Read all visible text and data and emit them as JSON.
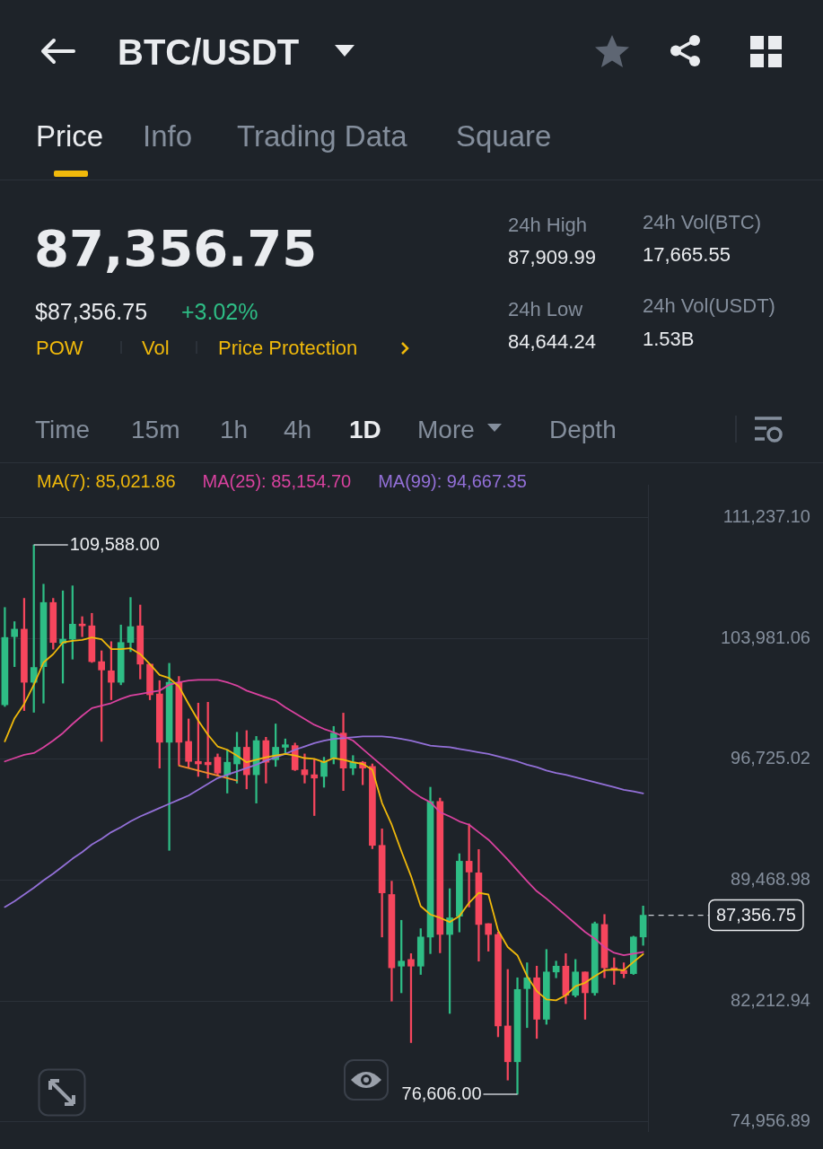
{
  "chart_data": {
    "type": "candlestick",
    "title": "BTC/USDT",
    "subtitle": "87,356.75",
    "categories": [
      null,
      null,
      null,
      null,
      null,
      null,
      null,
      null,
      null,
      null,
      null,
      null,
      null,
      null,
      null,
      null,
      null,
      null,
      null,
      null,
      null,
      null,
      null,
      null,
      null,
      null,
      null,
      null,
      null,
      null,
      null,
      null,
      null,
      null,
      null,
      null,
      null,
      null,
      null,
      null,
      null,
      null,
      null,
      null,
      null,
      null,
      null,
      null,
      null,
      null,
      null,
      null,
      null,
      null,
      null,
      null,
      null,
      null,
      null,
      null,
      null,
      null,
      null,
      null,
      null,
      null,
      null
    ],
    "ohlc": [
      [
        99990,
        105830,
        99890,
        104030
      ],
      [
        104080,
        104980,
        102280,
        104530
      ],
      [
        104530,
        106380,
        99640,
        101340
      ],
      [
        101340,
        109588,
        99540,
        102230
      ],
      [
        102280,
        107230,
        100090,
        106130
      ],
      [
        106130,
        106380,
        103330,
        103730
      ],
      [
        103680,
        106830,
        101290,
        103930
      ],
      [
        103930,
        107130,
        102730,
        104830
      ],
      [
        104830,
        105280,
        104080,
        104730
      ],
      [
        104730,
        105480,
        102530,
        102580
      ],
      [
        102580,
        103230,
        97790,
        102080
      ],
      [
        102030,
        103780,
        100290,
        101340
      ],
      [
        101340,
        104780,
        101190,
        103730
      ],
      [
        103730,
        106430,
        103180,
        104680
      ],
      [
        104730,
        105980,
        101540,
        102430
      ],
      [
        102430,
        102430,
        100290,
        100590
      ],
      [
        100640,
        101440,
        96190,
        97740
      ],
      [
        97740,
        102480,
        91250,
        101340
      ],
      [
        101340,
        101690,
        96390,
        97740
      ],
      [
        97790,
        99140,
        96190,
        96590
      ],
      [
        96590,
        100090,
        95690,
        96440
      ],
      [
        96540,
        100140,
        95590,
        96390
      ],
      [
        96840,
        97040,
        95740,
        95890
      ],
      [
        95790,
        97290,
        94690,
        96540
      ],
      [
        96440,
        98340,
        95290,
        97440
      ],
      [
        97440,
        98440,
        94940,
        95790
      ],
      [
        95790,
        98090,
        94090,
        97840
      ],
      [
        97840,
        98040,
        95290,
        96540
      ],
      [
        96690,
        98840,
        96290,
        97440
      ],
      [
        97440,
        97940,
        97090,
        97590
      ],
      [
        97540,
        97690,
        96040,
        96090
      ],
      [
        96090,
        97040,
        95290,
        95790
      ],
      [
        95790,
        96690,
        93340,
        95590
      ],
      [
        95690,
        96840,
        95040,
        96590
      ],
      [
        96790,
        98690,
        96440,
        98290
      ],
      [
        98290,
        99490,
        94840,
        96190
      ],
      [
        96190,
        96940,
        95790,
        96540
      ],
      [
        96540,
        96590,
        95190,
        96190
      ],
      [
        96290,
        96440,
        91350,
        91550
      ],
      [
        91550,
        92540,
        86050,
        88700
      ],
      [
        88600,
        89400,
        82200,
        84200
      ],
      [
        84300,
        87050,
        82700,
        84600
      ],
      [
        84700,
        85050,
        79710,
        84300
      ],
      [
        84300,
        86550,
        83800,
        86050
      ],
      [
        86050,
        95040,
        85050,
        94190
      ],
      [
        94190,
        94390,
        85100,
        86200
      ],
      [
        86200,
        88950,
        81460,
        87200
      ],
      [
        87300,
        91050,
        86350,
        90600
      ],
      [
        90600,
        92840,
        87850,
        89950
      ],
      [
        89900,
        91300,
        84600,
        86800
      ],
      [
        86850,
        86850,
        85200,
        86200
      ],
      [
        86200,
        86350,
        80060,
        80710
      ],
      [
        80710,
        84100,
        77460,
        78560
      ],
      [
        78560,
        83600,
        76606,
        82900
      ],
      [
        82950,
        84500,
        80610,
        83600
      ],
      [
        83600,
        84300,
        79960,
        81110
      ],
      [
        81110,
        85300,
        80810,
        83950
      ],
      [
        83950,
        84600,
        83600,
        84300
      ],
      [
        84300,
        85050,
        82050,
        82550
      ],
      [
        82550,
        84700,
        82450,
        83950
      ],
      [
        83950,
        83950,
        81110,
        82700
      ],
      [
        82700,
        86950,
        82550,
        86850
      ],
      [
        86800,
        87400,
        83600,
        84200
      ],
      [
        84200,
        84800,
        83200,
        84050
      ],
      [
        84050,
        84500,
        83600,
        83850
      ],
      [
        83850,
        86100,
        83800,
        86050
      ],
      [
        86050,
        87910,
        85550,
        87356.75
      ]
    ],
    "colors": [
      "#2ebd85",
      "#2ebd85",
      "#f6465d",
      "#2ebd85",
      "#2ebd85",
      "#f6465d",
      "#2ebd85",
      "#2ebd85",
      "#f6465d",
      "#f6465d",
      "#f6465d",
      "#f6465d",
      "#2ebd85",
      "#2ebd85",
      "#f6465d",
      "#f6465d",
      "#f6465d",
      "#2ebd85",
      "#f6465d",
      "#f6465d",
      "#f6465d",
      "#f6465d",
      "#f6465d",
      "#2ebd85",
      "#2ebd85",
      "#f6465d",
      "#2ebd85",
      "#f6465d",
      "#2ebd85",
      "#2ebd85",
      "#f6465d",
      "#f6465d",
      "#f6465d",
      "#2ebd85",
      "#2ebd85",
      "#f6465d",
      "#2ebd85",
      "#f6465d",
      "#f6465d",
      "#f6465d",
      "#f6465d",
      "#2ebd85",
      "#f6465d",
      "#2ebd85",
      "#2ebd85",
      "#f6465d",
      "#2ebd85",
      "#2ebd85",
      "#f6465d",
      "#f6465d",
      "#f6465d",
      "#f6465d",
      "#f6465d",
      "#2ebd85",
      "#2ebd85",
      "#f6465d",
      "#2ebd85",
      "#2ebd85",
      "#f6465d",
      "#2ebd85",
      "#f6465d",
      "#2ebd85",
      "#f6465d",
      "#f6465d",
      "#f6465d",
      "#2ebd85",
      "#2ebd85"
    ],
    "series": [
      {
        "name": "MA(7): 85,021.86",
        "type": "line",
        "color": "#f0b90b",
        "values": [
          97790,
          99180,
          100040,
          101190,
          102530,
          103030,
          103730,
          103830,
          103880,
          104030,
          103930,
          103330,
          103330,
          103380,
          103030,
          102430,
          101780,
          101590,
          101090,
          100040,
          99040,
          98190,
          97490,
          97290,
          96940,
          96540,
          96690,
          96840,
          96940,
          97040,
          96940,
          96790,
          96740,
          96540,
          96790,
          96690,
          96540,
          96440,
          96090,
          94090,
          92790,
          91200,
          89700,
          87900,
          87400,
          87200,
          86950,
          87300,
          88100,
          88700,
          88600,
          86450,
          85450,
          84950,
          83700,
          82800,
          82300,
          82250,
          82550,
          83100,
          83300,
          83700,
          84050,
          84100,
          84050,
          84550,
          85020
        ]
      },
      {
        "name": "MA(25): 85,154.70",
        "type": "line",
        "color": "#d9429f",
        "values": [
          96590,
          96790,
          96990,
          97090,
          97440,
          97840,
          98290,
          98840,
          99340,
          99790,
          99940,
          100090,
          100340,
          100540,
          100640,
          100740,
          100840,
          101190,
          101340,
          101440,
          101490,
          101490,
          101490,
          101340,
          101140,
          100840,
          100640,
          100440,
          100240,
          99840,
          99490,
          99140,
          98790,
          98540,
          98340,
          98090,
          97840,
          97340,
          96840,
          96340,
          95840,
          95340,
          94840,
          94440,
          94140,
          93540,
          93290,
          92990,
          92790,
          92340,
          91890,
          91300,
          90700,
          90050,
          89400,
          88800,
          88350,
          87850,
          87350,
          86850,
          86350,
          85950,
          85450,
          85100,
          84950,
          85050,
          85150
        ]
      },
      {
        "name": "MA(99): 94,667.35",
        "type": "line",
        "color": "#9370d8",
        "values": [
          87850,
          88200,
          88600,
          89000,
          89450,
          89850,
          90300,
          90750,
          91150,
          91600,
          91940,
          92340,
          92640,
          92990,
          93290,
          93540,
          93790,
          94040,
          94290,
          94540,
          94890,
          95240,
          95590,
          95790,
          95990,
          96190,
          96390,
          96640,
          96840,
          97040,
          97290,
          97490,
          97690,
          97840,
          97940,
          97990,
          98040,
          98090,
          98090,
          98090,
          98040,
          97940,
          97840,
          97690,
          97540,
          97490,
          97440,
          97340,
          97240,
          97140,
          97040,
          96890,
          96740,
          96590,
          96390,
          96240,
          96040,
          95890,
          95790,
          95640,
          95490,
          95340,
          95190,
          95040,
          94890,
          94790,
          94670
        ]
      },
      {
        "type": "line",
        "color": "#f08c2a",
        "values": [
          null,
          null,
          null,
          null,
          null,
          null,
          null,
          null,
          null,
          null,
          null,
          null,
          null,
          null,
          null,
          null,
          null,
          null,
          96340,
          null,
          null,
          null,
          null,
          null,
          95440,
          null,
          null,
          null,
          null,
          null,
          null,
          null,
          null,
          null,
          null,
          null,
          null,
          null,
          null,
          null,
          null,
          null,
          null,
          null,
          null,
          null,
          null,
          null,
          null,
          null,
          null,
          null,
          null,
          null,
          null,
          null,
          null,
          null,
          null,
          null,
          null,
          null,
          null,
          null,
          null,
          null,
          null
        ]
      }
    ],
    "ylim": [
      74400,
      113200
    ],
    "yticks": [
      {
        "value": 111237.1,
        "label": "111,237.10"
      },
      {
        "value": 103981.06,
        "label": "103,981.06"
      },
      {
        "value": 96725.02,
        "label": "96,725.02"
      },
      {
        "value": 89468.98,
        "label": "89,468.98"
      },
      {
        "value": 82212.94,
        "label": "82,212.94"
      },
      {
        "value": 74956.89,
        "label": "74,956.89"
      }
    ],
    "ref_lines": [
      {
        "axis": "y",
        "value": 87356.75,
        "label": "87,356.75",
        "line_style": "dashed"
      }
    ],
    "annotations": [
      "Price",
      "Info",
      "Trading Data",
      "Square",
      "$87,356.75",
      "+3.02%",
      "POW",
      "Vol",
      "Price Protection",
      "24h High",
      "87,909.99",
      "24h Vol(BTC)",
      "17,665.55",
      "24h Low",
      "84,644.24",
      "24h Vol(USDT)",
      "1.53B",
      "Time",
      "15m",
      "1h",
      "4h",
      "1D",
      "More",
      "Depth",
      "109,588.00",
      "76,606.00"
    ],
    "grid": "y",
    "legend": "top",
    "tick_labels": "y"
  }
}
